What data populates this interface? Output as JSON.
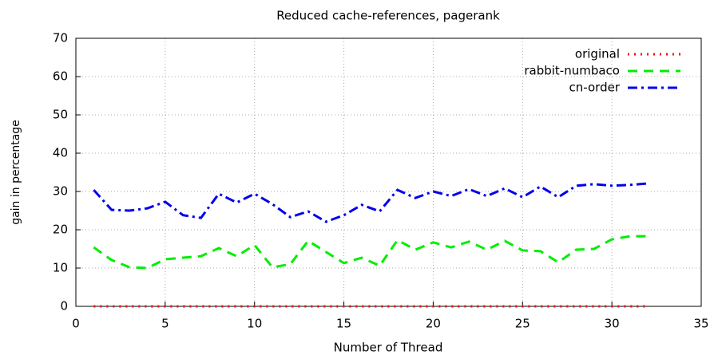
{
  "chart_data": {
    "type": "line",
    "title": "Reduced cache-references, pagerank",
    "xlabel": "Number of Thread",
    "ylabel": "gain in percentage",
    "x": [
      1,
      2,
      3,
      4,
      5,
      6,
      7,
      8,
      9,
      10,
      11,
      12,
      13,
      14,
      15,
      16,
      17,
      18,
      19,
      20,
      21,
      22,
      23,
      24,
      25,
      26,
      27,
      28,
      29,
      30,
      31,
      32
    ],
    "series": [
      {
        "name": "original",
        "color": "#ff0000",
        "dash": "2,6",
        "values": [
          0,
          0,
          0,
          0,
          0,
          0,
          0,
          0,
          0,
          0,
          0,
          0,
          0,
          0,
          0,
          0,
          0,
          0,
          0,
          0,
          0,
          0,
          0,
          0,
          0,
          0,
          0,
          0,
          0,
          0,
          0,
          0
        ]
      },
      {
        "name": "rabbit-numbaco",
        "color": "#00ee00",
        "dash": "12,8",
        "values": [
          15.4,
          12.1,
          10.2,
          10,
          12.3,
          12.7,
          13.1,
          15.2,
          13.1,
          16,
          10.2,
          11,
          17.1,
          14.2,
          11.3,
          12.7,
          10.6,
          17.3,
          14.8,
          16.7,
          15.4,
          16.9,
          14.8,
          17.1,
          14.6,
          14.4,
          11.5,
          14.8,
          15,
          17.5,
          18.3,
          18.3
        ]
      },
      {
        "name": "cn-order",
        "color": "#0000ee",
        "dash": "12,5,3,5",
        "values": [
          30.4,
          25.2,
          25,
          25.6,
          27.3,
          23.8,
          23.1,
          29.4,
          27.1,
          29.4,
          26.7,
          23.3,
          24.8,
          22.1,
          23.8,
          26.5,
          24.8,
          30.4,
          28.3,
          30,
          28.8,
          30.6,
          28.8,
          30.8,
          28.5,
          31.3,
          28.5,
          31.5,
          31.9,
          31.5,
          31.7,
          32.1
        ]
      }
    ],
    "xlim": [
      0,
      35
    ],
    "xticks": [
      0,
      5,
      10,
      15,
      20,
      25,
      30,
      35
    ],
    "ylim": [
      0,
      70
    ],
    "yticks": [
      0,
      10,
      20,
      30,
      40,
      50,
      60,
      70
    ],
    "grid": true,
    "legend": "top-right"
  }
}
